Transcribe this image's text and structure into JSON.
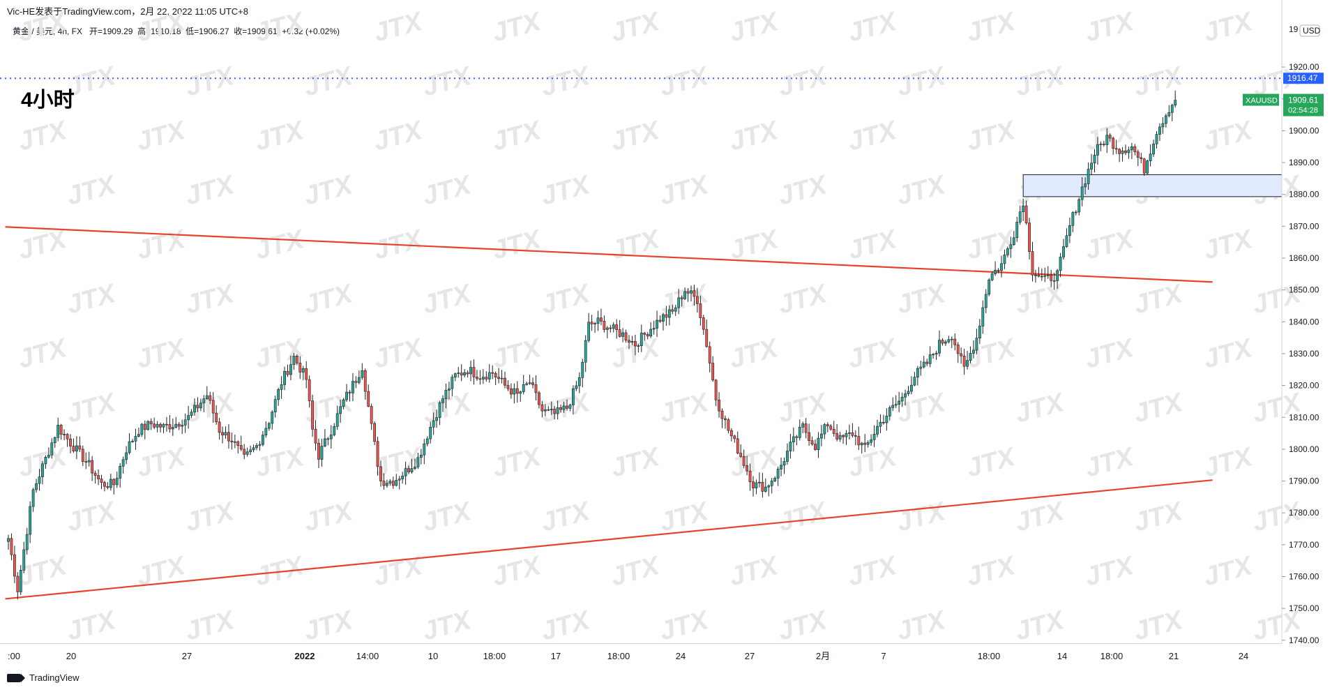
{
  "header": {
    "publisher": "Vic-HE发表于TradingView.com，2月 22, 2022 11:05 UTC+8",
    "symbol_info": "黄金 / 美元, 4h, FX",
    "open_label": "开=1909.29",
    "high_label": "高=1910.18",
    "low_label": "低=1906.27",
    "close_label": "收=1909.61",
    "change_label": "+0.32 (+0.02%)"
  },
  "annotation_label": "4小时",
  "brand": "TradingView",
  "watermark": "JTX",
  "colors": {
    "up": "#26a69a",
    "down": "#ef5350",
    "candle": "#1f1f1f",
    "trendline": "#e8412c",
    "dotted": "#2962ff",
    "zone_fill": "#e1ebfd",
    "price_tag": "#26a65b"
  },
  "axis": {
    "currency": "USD",
    "price_tag_dotted": "1916.47",
    "symbol_tag": "XAUUSD",
    "current_price": "1909.61",
    "countdown": "02:54:28",
    "top_clip": "19"
  },
  "chart_data": {
    "type": "candlestick",
    "ylim": [
      1735,
      1926
    ],
    "yticks": [
      "1740.00",
      "1750.00",
      "1760.00",
      "1770.00",
      "1780.00",
      "1790.00",
      "1800.00",
      "1810.00",
      "1820.00",
      "1830.00",
      "1840.00",
      "1850.00",
      "1860.00",
      "1870.00",
      "1880.00",
      "1890.00",
      "1900.00",
      "1910.00",
      "1920.00"
    ],
    "xticks": [
      ":00",
      "20",
      "27",
      "2022",
      "14:00",
      "10",
      "18:00",
      "17",
      "18:00",
      "24",
      "27",
      "2月",
      "7",
      "18:00",
      "14",
      "18:00",
      "21",
      "24"
    ],
    "waypoints": [
      [
        0,
        1772
      ],
      [
        3,
        1756
      ],
      [
        8,
        1787
      ],
      [
        12,
        1797
      ],
      [
        16,
        1807
      ],
      [
        20,
        1802
      ],
      [
        26,
        1795
      ],
      [
        30,
        1789
      ],
      [
        34,
        1789
      ],
      [
        38,
        1800
      ],
      [
        42,
        1806
      ],
      [
        46,
        1808
      ],
      [
        50,
        1807
      ],
      [
        54,
        1808
      ],
      [
        58,
        1810
      ],
      [
        64,
        1817
      ],
      [
        68,
        1806
      ],
      [
        72,
        1803
      ],
      [
        76,
        1797
      ],
      [
        80,
        1801
      ],
      [
        84,
        1809
      ],
      [
        88,
        1821
      ],
      [
        92,
        1829
      ],
      [
        96,
        1822
      ],
      [
        98,
        1806
      ],
      [
        100,
        1798
      ],
      [
        104,
        1806
      ],
      [
        108,
        1815
      ],
      [
        112,
        1822
      ],
      [
        114,
        1826
      ],
      [
        117,
        1807
      ],
      [
        120,
        1790
      ],
      [
        124,
        1790
      ],
      [
        128,
        1793
      ],
      [
        132,
        1797
      ],
      [
        136,
        1807
      ],
      [
        140,
        1816
      ],
      [
        144,
        1823
      ],
      [
        148,
        1825
      ],
      [
        152,
        1823
      ],
      [
        156,
        1824
      ],
      [
        160,
        1820
      ],
      [
        164,
        1817
      ],
      [
        168,
        1821
      ],
      [
        172,
        1812
      ],
      [
        176,
        1811
      ],
      [
        180,
        1813
      ],
      [
        184,
        1822
      ],
      [
        187,
        1839
      ],
      [
        190,
        1840
      ],
      [
        194,
        1838
      ],
      [
        198,
        1836
      ],
      [
        202,
        1833
      ],
      [
        206,
        1837
      ],
      [
        210,
        1841
      ],
      [
        214,
        1843
      ],
      [
        218,
        1850
      ],
      [
        222,
        1847
      ],
      [
        225,
        1833
      ],
      [
        228,
        1816
      ],
      [
        232,
        1806
      ],
      [
        236,
        1798
      ],
      [
        240,
        1789
      ],
      [
        244,
        1788
      ],
      [
        248,
        1793
      ],
      [
        252,
        1801
      ],
      [
        256,
        1807
      ],
      [
        260,
        1801
      ],
      [
        264,
        1808
      ],
      [
        268,
        1803
      ],
      [
        272,
        1805
      ],
      [
        276,
        1800
      ],
      [
        280,
        1807
      ],
      [
        284,
        1812
      ],
      [
        288,
        1816
      ],
      [
        292,
        1823
      ],
      [
        296,
        1827
      ],
      [
        300,
        1833
      ],
      [
        304,
        1836
      ],
      [
        308,
        1825
      ],
      [
        312,
        1835
      ],
      [
        316,
        1854
      ],
      [
        320,
        1858
      ],
      [
        324,
        1868
      ],
      [
        327,
        1878
      ],
      [
        330,
        1856
      ],
      [
        334,
        1853
      ],
      [
        338,
        1855
      ],
      [
        342,
        1870
      ],
      [
        346,
        1882
      ],
      [
        350,
        1893
      ],
      [
        354,
        1898
      ],
      [
        358,
        1894
      ],
      [
        362,
        1895
      ],
      [
        366,
        1888
      ],
      [
        370,
        1900
      ],
      [
        374,
        1907
      ],
      [
        376,
        1909.6
      ]
    ],
    "trendlines": [
      {
        "name": "upper",
        "x1": -1,
        "y1": 1869.8,
        "x2": 388,
        "y2": 1852.5
      },
      {
        "name": "lower",
        "x1": -1,
        "y1": 1753.0,
        "x2": 388,
        "y2": 1790.3
      }
    ],
    "levels": [
      {
        "price": 1916.47,
        "style": "dotted"
      }
    ],
    "zones": [
      {
        "top": 1886.2,
        "bottom": 1879.3,
        "from_x": 327
      }
    ]
  }
}
